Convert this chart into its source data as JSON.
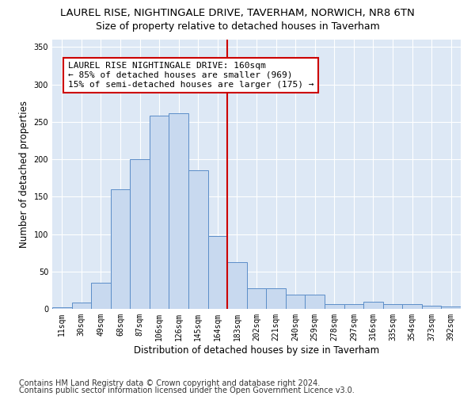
{
  "title": "LAUREL RISE, NIGHTINGALE DRIVE, TAVERHAM, NORWICH, NR8 6TN",
  "subtitle": "Size of property relative to detached houses in Taverham",
  "xlabel": "Distribution of detached houses by size in Taverham",
  "ylabel": "Number of detached properties",
  "bar_labels": [
    "11sqm",
    "30sqm",
    "49sqm",
    "68sqm",
    "87sqm",
    "106sqm",
    "126sqm",
    "145sqm",
    "164sqm",
    "183sqm",
    "202sqm",
    "221sqm",
    "240sqm",
    "259sqm",
    "278sqm",
    "297sqm",
    "316sqm",
    "335sqm",
    "354sqm",
    "373sqm",
    "392sqm"
  ],
  "bar_values": [
    2,
    8,
    35,
    160,
    200,
    258,
    262,
    185,
    97,
    62,
    28,
    28,
    19,
    19,
    6,
    6,
    10,
    6,
    6,
    4,
    3
  ],
  "bar_color": "#c8d9ef",
  "bar_edge_color": "#5b8dc8",
  "vline_x": 8.5,
  "vline_color": "#cc0000",
  "annotation_box_text": "LAUREL RISE NIGHTINGALE DRIVE: 160sqm\n← 85% of detached houses are smaller (969)\n15% of semi-detached houses are larger (175) →",
  "annotation_box_color": "#cc0000",
  "annotation_box_bg": "#ffffff",
  "ylim": [
    0,
    360
  ],
  "yticks": [
    0,
    50,
    100,
    150,
    200,
    250,
    300,
    350
  ],
  "footer_line1": "Contains HM Land Registry data © Crown copyright and database right 2024.",
  "footer_line2": "Contains public sector information licensed under the Open Government Licence v3.0.",
  "bg_color": "#dde8f5",
  "fig_bg_color": "#ffffff",
  "title_fontsize": 9.5,
  "subtitle_fontsize": 9,
  "axis_label_fontsize": 8.5,
  "tick_fontsize": 7,
  "footer_fontsize": 7,
  "annotation_fontsize": 8
}
